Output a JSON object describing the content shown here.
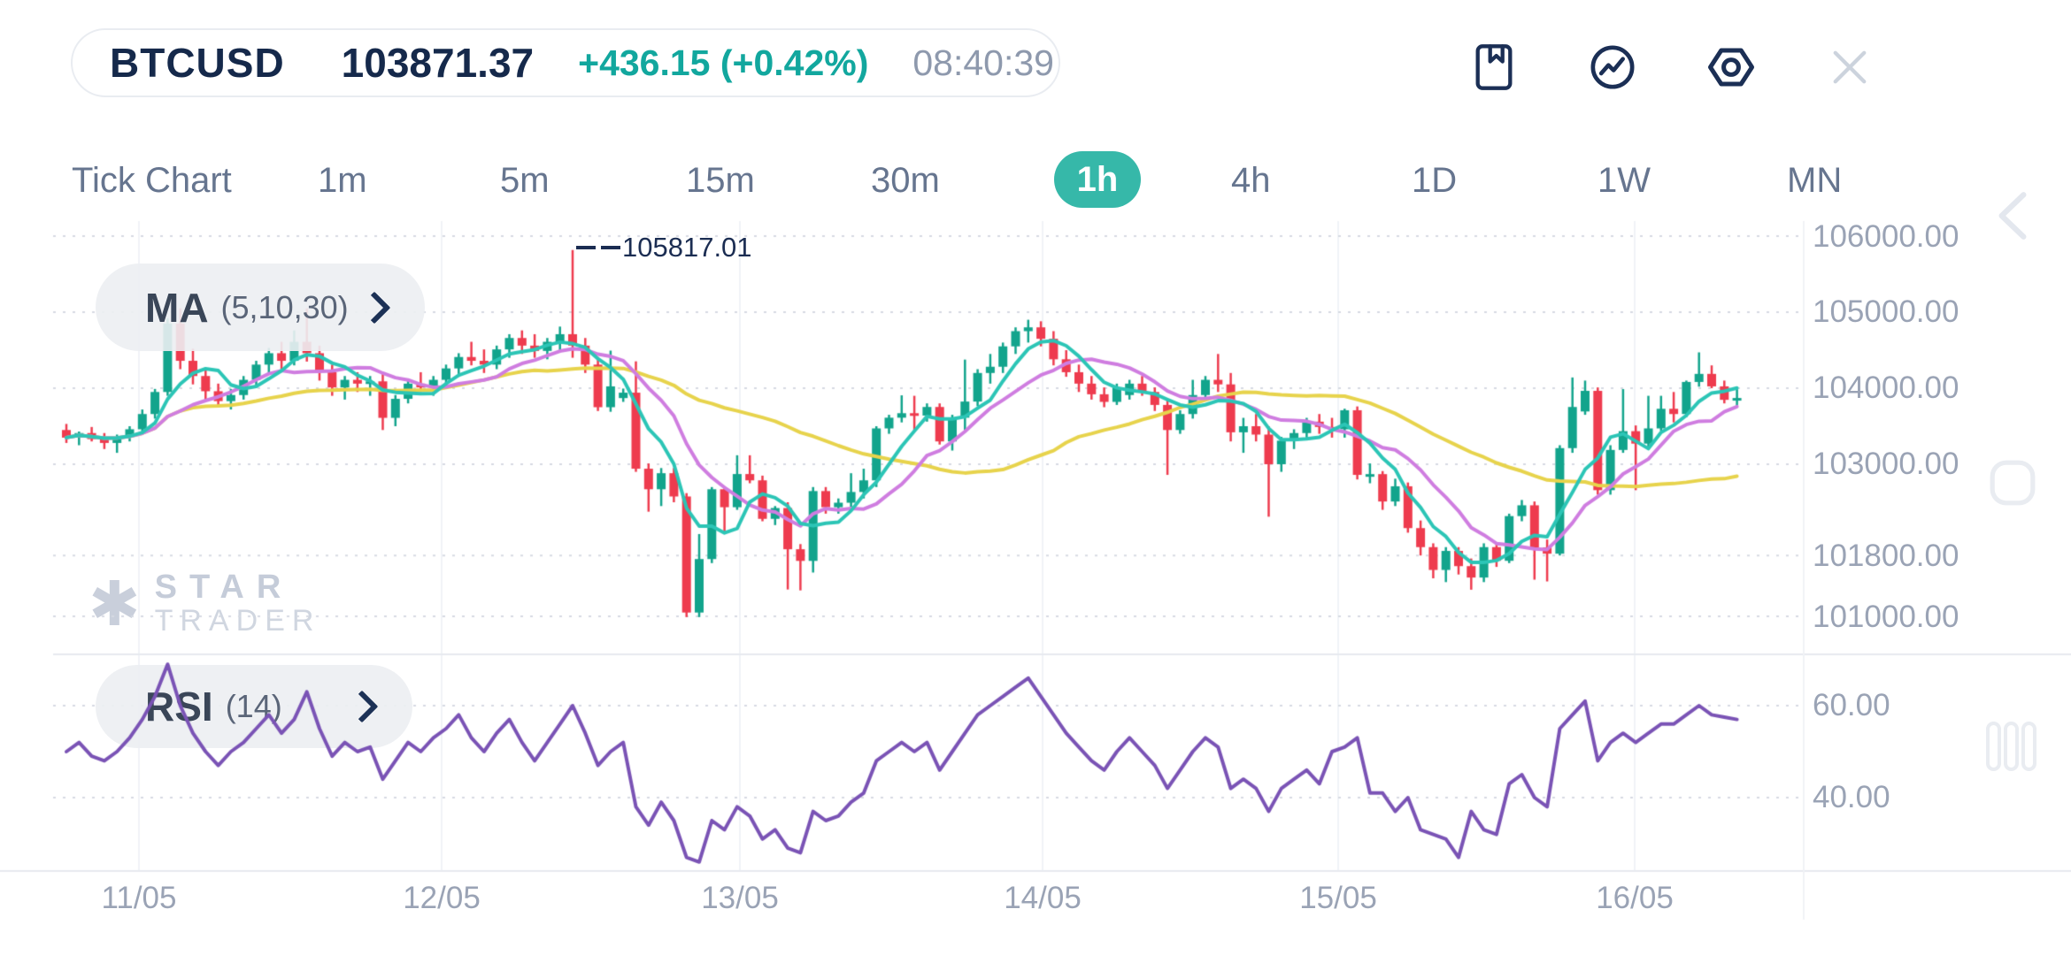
{
  "header": {
    "symbol": "BTCUSD",
    "price": "103871.37",
    "change": "+436.15 (+0.42%)",
    "time": "08:40:39"
  },
  "toolbar": {
    "icons": [
      "bookmark",
      "trend-circle",
      "settings-hexagon",
      "close"
    ]
  },
  "timeframes": {
    "items": [
      {
        "label": "Tick Chart",
        "active": false
      },
      {
        "label": "1m",
        "active": false
      },
      {
        "label": "5m",
        "active": false
      },
      {
        "label": "15m",
        "active": false
      },
      {
        "label": "30m",
        "active": false
      },
      {
        "label": "1h",
        "active": true
      },
      {
        "label": "4h",
        "active": false
      },
      {
        "label": "1D",
        "active": false
      },
      {
        "label": "1W",
        "active": false
      },
      {
        "label": "MN",
        "active": false
      }
    ]
  },
  "indicators": {
    "ma": {
      "name": "MA",
      "params": "(5,10,30)"
    },
    "rsi": {
      "name": "RSI",
      "params": "(14)"
    }
  },
  "watermark": {
    "line1": "STAR",
    "line2": "TRADER",
    "logo": "asterisk-star"
  },
  "annotation": {
    "value": "105817.01"
  },
  "side_controls": {
    "icons": [
      "collapse-left-chevron",
      "stop-square",
      "drag-handle-bars"
    ]
  },
  "chart_data": {
    "type": "candlestick",
    "symbol": "BTCUSD",
    "timeframe": "1h",
    "title": "",
    "price_axis": {
      "labels": [
        "106000.00",
        "105000.00",
        "104000.00",
        "103000.00",
        "101800.00",
        "101000.00"
      ],
      "values": [
        106000,
        105000,
        104000,
        103000,
        101800,
        101000
      ]
    },
    "rsi_axis": {
      "labels": [
        "60.00",
        "40.00"
      ],
      "values": [
        60,
        40
      ]
    },
    "x_axis": {
      "labels": [
        "11/05",
        "12/05",
        "13/05",
        "14/05",
        "15/05",
        "16/05"
      ]
    },
    "high_annotation": 105817.01,
    "last_price": 103871.37,
    "ma_periods": [
      5,
      10,
      30
    ],
    "rsi_period": 14,
    "colors": {
      "up": "#12a48c",
      "down": "#ee3b4e",
      "ma5": "#2cc5b6",
      "ma10": "#cf7de0",
      "ma30": "#e7d34c",
      "rsi": "#7a53b5",
      "grid": "#d6dae2",
      "vgrid": "#f1f3f7",
      "separator": "#e7eaef",
      "accent": "#36b8a9",
      "text_navy": "#15294b"
    },
    "candles": [
      [
        103450,
        103530,
        103280,
        103350
      ],
      [
        103350,
        103430,
        103250,
        103410
      ],
      [
        103410,
        103490,
        103300,
        103330
      ],
      [
        103330,
        103410,
        103200,
        103280
      ],
      [
        103280,
        103390,
        103150,
        103360
      ],
      [
        103360,
        103500,
        103300,
        103460
      ],
      [
        103460,
        103720,
        103400,
        103660
      ],
      [
        103660,
        103990,
        103600,
        103950
      ],
      [
        103950,
        104920,
        103900,
        104850
      ],
      [
        104850,
        105050,
        104250,
        104360
      ],
      [
        104360,
        104520,
        104050,
        104160
      ],
      [
        104160,
        104260,
        103850,
        103960
      ],
      [
        103960,
        104060,
        103750,
        103830
      ],
      [
        103830,
        103990,
        103720,
        103910
      ],
      [
        103910,
        104160,
        103850,
        104110
      ],
      [
        104110,
        104360,
        104010,
        104310
      ],
      [
        104310,
        104530,
        104200,
        104460
      ],
      [
        104460,
        104610,
        104250,
        104360
      ],
      [
        104360,
        104760,
        104300,
        104610
      ],
      [
        104610,
        105050,
        104350,
        104460
      ],
      [
        104460,
        104560,
        104100,
        104210
      ],
      [
        104210,
        104310,
        103900,
        104010
      ],
      [
        104010,
        104160,
        103850,
        104110
      ],
      [
        104110,
        104210,
        103950,
        104060
      ],
      [
        104060,
        104160,
        103900,
        104090
      ],
      [
        104090,
        104190,
        103450,
        103610
      ],
      [
        103610,
        103910,
        103500,
        103860
      ],
      [
        103860,
        104110,
        103800,
        104060
      ],
      [
        104060,
        104210,
        103950,
        104010
      ],
      [
        104010,
        104160,
        103900,
        104110
      ],
      [
        104110,
        104310,
        104000,
        104260
      ],
      [
        104260,
        104460,
        104150,
        104410
      ],
      [
        104410,
        104610,
        104300,
        104360
      ],
      [
        104360,
        104510,
        104200,
        104310
      ],
      [
        104310,
        104560,
        104250,
        104510
      ],
      [
        104510,
        104710,
        104400,
        104660
      ],
      [
        104660,
        104760,
        104450,
        104560
      ],
      [
        104560,
        104710,
        104400,
        104490
      ],
      [
        104490,
        104660,
        104380,
        104610
      ],
      [
        104610,
        104810,
        104500,
        104710
      ],
      [
        104710,
        105817,
        104400,
        104560
      ],
      [
        104560,
        104660,
        104200,
        104310
      ],
      [
        104310,
        104410,
        103700,
        103750
      ],
      [
        103750,
        104494,
        103690,
        104024
      ],
      [
        103870,
        103995,
        103820,
        103941
      ],
      [
        103941,
        104353,
        102900,
        102941
      ],
      [
        102941,
        103010,
        102376,
        102671
      ],
      [
        102671,
        102950,
        102450,
        102882
      ],
      [
        102882,
        102950,
        102500,
        102576
      ],
      [
        102576,
        102620,
        100990,
        101050
      ],
      [
        101050,
        102082,
        100990,
        101753
      ],
      [
        101753,
        102700,
        101700,
        102671
      ],
      [
        102671,
        102710,
        102106,
        102435
      ],
      [
        102435,
        103118,
        102400,
        102871
      ],
      [
        102871,
        103118,
        102750,
        102788
      ],
      [
        102788,
        102850,
        102250,
        102282
      ],
      [
        102282,
        102450,
        102200,
        102424
      ],
      [
        102424,
        102500,
        101353,
        101882
      ],
      [
        101882,
        101950,
        101341,
        101729
      ],
      [
        101729,
        102700,
        101576,
        102647
      ],
      [
        102647,
        102700,
        102350,
        102435
      ],
      [
        102435,
        102550,
        102350,
        102494
      ],
      [
        102494,
        102882,
        102400,
        102635
      ],
      [
        102635,
        102941,
        102550,
        102788
      ],
      [
        102788,
        103500,
        102700,
        103471
      ],
      [
        103471,
        103650,
        103400,
        103612
      ],
      [
        103612,
        103906,
        103550,
        103671
      ],
      [
        103671,
        103900,
        103450,
        103640
      ],
      [
        103640,
        103800,
        103560,
        103753
      ],
      [
        103753,
        103800,
        103259,
        103300
      ],
      [
        103300,
        103650,
        103180,
        103612
      ],
      [
        103612,
        104376,
        103450,
        103824
      ],
      [
        103824,
        104250,
        103765,
        104200
      ],
      [
        104200,
        104450,
        104060,
        104282
      ],
      [
        104282,
        104600,
        104200,
        104550
      ],
      [
        104550,
        104800,
        104450,
        104750
      ],
      [
        104750,
        104900,
        104600,
        104800
      ],
      [
        104800,
        104880,
        104550,
        104650
      ],
      [
        104650,
        104750,
        104300,
        104380
      ],
      [
        104380,
        104500,
        104150,
        104210
      ],
      [
        104210,
        104310,
        103950,
        104060
      ],
      [
        104060,
        104160,
        103850,
        103920
      ],
      [
        103920,
        104010,
        103750,
        103820
      ],
      [
        103820,
        104060,
        103780,
        104010
      ],
      [
        103910,
        104110,
        103850,
        104060
      ],
      [
        104060,
        104160,
        103900,
        103950
      ],
      [
        103950,
        104010,
        103700,
        103780
      ],
      [
        103780,
        103860,
        102860,
        103450
      ],
      [
        103450,
        103710,
        103400,
        103660
      ],
      [
        103660,
        104110,
        103600,
        103910
      ],
      [
        103910,
        104160,
        103850,
        104110
      ],
      [
        104110,
        104450,
        103950,
        104050
      ],
      [
        104050,
        104200,
        103300,
        103420
      ],
      [
        103420,
        103610,
        103150,
        103500
      ],
      [
        103500,
        103660,
        103300,
        103390
      ],
      [
        103390,
        103500,
        102310,
        103000
      ],
      [
        103000,
        103360,
        102900,
        103310
      ],
      [
        103310,
        103460,
        103200,
        103410
      ],
      [
        103410,
        103610,
        103350,
        103560
      ],
      [
        103560,
        103660,
        103400,
        103490
      ],
      [
        103490,
        103610,
        103350,
        103460
      ],
      [
        103460,
        103730,
        103350,
        103710
      ],
      [
        103710,
        103760,
        102800,
        102860
      ],
      [
        102860,
        103010,
        102750,
        102870
      ],
      [
        102870,
        102910,
        102400,
        102510
      ],
      [
        102510,
        102810,
        102450,
        102710
      ],
      [
        102710,
        102760,
        102100,
        102160
      ],
      [
        102160,
        102260,
        101800,
        101910
      ],
      [
        101910,
        101960,
        101500,
        101610
      ],
      [
        101610,
        101910,
        101450,
        101860
      ],
      [
        101860,
        101910,
        101550,
        101660
      ],
      [
        101660,
        101760,
        101350,
        101510
      ],
      [
        101510,
        101960,
        101450,
        101910
      ],
      [
        101910,
        101960,
        101650,
        101730
      ],
      [
        101730,
        102350,
        101700,
        102318
      ],
      [
        102318,
        102530,
        102250,
        102460
      ],
      [
        102460,
        102510,
        101482,
        101906
      ],
      [
        101906,
        102010,
        101459,
        101824
      ],
      [
        101824,
        103250,
        101800,
        103212
      ],
      [
        103212,
        104141,
        103150,
        103753
      ],
      [
        103694,
        104100,
        103650,
        103965
      ],
      [
        103965,
        104010,
        102600,
        102659
      ],
      [
        102659,
        103250,
        102600,
        103188
      ],
      [
        103188,
        103988,
        103150,
        103435
      ],
      [
        103435,
        103510,
        102659,
        103271
      ],
      [
        103271,
        103900,
        103230,
        103471
      ],
      [
        103471,
        103900,
        103440,
        103729
      ],
      [
        103729,
        103950,
        103550,
        103660
      ],
      [
        103660,
        104100,
        103620,
        104082
      ],
      [
        104082,
        104471,
        104020,
        104188
      ],
      [
        104188,
        104300,
        104000,
        104024
      ],
      [
        104024,
        104100,
        103800,
        103847
      ],
      [
        103847,
        104000,
        103750,
        103871
      ]
    ],
    "rsi_values": [
      50,
      52,
      49,
      48,
      50,
      53,
      57,
      62,
      69,
      60,
      54,
      50,
      47,
      50,
      52,
      55,
      58,
      54,
      57,
      63,
      55,
      49,
      52,
      50,
      51,
      44,
      48,
      52,
      50,
      53,
      55,
      58,
      53,
      50,
      54,
      57,
      52,
      48,
      52,
      56,
      60,
      54,
      47,
      50,
      52,
      38,
      34,
      39,
      35,
      27,
      26,
      35,
      33,
      38,
      36,
      31,
      33,
      29,
      28,
      37,
      35,
      36,
      39,
      41,
      48,
      50,
      52,
      50,
      52,
      46,
      50,
      54,
      58,
      60,
      62,
      64,
      66,
      62,
      58,
      54,
      51,
      48,
      46,
      50,
      53,
      50,
      47,
      42,
      46,
      50,
      53,
      51,
      42,
      44,
      42,
      37,
      42,
      44,
      46,
      43,
      50,
      51,
      53,
      41,
      41,
      37,
      40,
      33,
      32,
      31,
      27,
      37,
      33,
      32,
      43,
      45,
      40,
      38,
      55,
      58,
      61,
      48,
      52,
      54,
      52,
      54,
      56,
      56,
      58,
      60,
      58,
      57.5,
      57
    ]
  }
}
